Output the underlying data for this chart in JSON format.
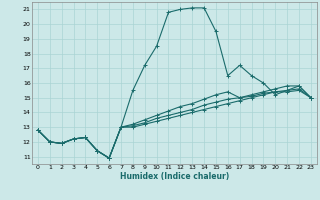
{
  "xlabel": "Humidex (Indice chaleur)",
  "bg_color": "#cce8e8",
  "line_color": "#1a6b6b",
  "grid_color": "#aad4d4",
  "xlim": [
    -0.5,
    23.5
  ],
  "ylim": [
    10.5,
    21.5
  ],
  "yticks": [
    11,
    12,
    13,
    14,
    15,
    16,
    17,
    18,
    19,
    20,
    21
  ],
  "xticks": [
    0,
    1,
    2,
    3,
    4,
    5,
    6,
    7,
    8,
    9,
    10,
    11,
    12,
    13,
    14,
    15,
    16,
    17,
    18,
    19,
    20,
    21,
    22,
    23
  ],
  "series": [
    [
      12.8,
      12.0,
      11.9,
      12.2,
      12.3,
      11.4,
      10.9,
      13.0,
      15.5,
      17.2,
      18.5,
      20.8,
      21.0,
      21.1,
      21.1,
      19.5,
      16.5,
      17.2,
      16.5,
      16.0,
      15.2,
      15.5,
      15.8,
      15.0
    ],
    [
      12.8,
      12.0,
      11.9,
      12.2,
      12.3,
      11.4,
      10.9,
      13.0,
      13.2,
      13.5,
      13.8,
      14.1,
      14.4,
      14.6,
      14.9,
      15.2,
      15.4,
      15.0,
      15.2,
      15.4,
      15.6,
      15.8,
      15.8,
      15.0
    ],
    [
      12.8,
      12.0,
      11.9,
      12.2,
      12.3,
      11.4,
      10.9,
      13.0,
      13.1,
      13.3,
      13.6,
      13.8,
      14.0,
      14.2,
      14.5,
      14.7,
      14.9,
      15.0,
      15.1,
      15.3,
      15.4,
      15.5,
      15.6,
      15.0
    ],
    [
      12.8,
      12.0,
      11.9,
      12.2,
      12.3,
      11.4,
      10.9,
      13.0,
      13.0,
      13.2,
      13.4,
      13.6,
      13.8,
      14.0,
      14.2,
      14.4,
      14.6,
      14.8,
      15.0,
      15.2,
      15.4,
      15.4,
      15.5,
      15.0
    ]
  ]
}
